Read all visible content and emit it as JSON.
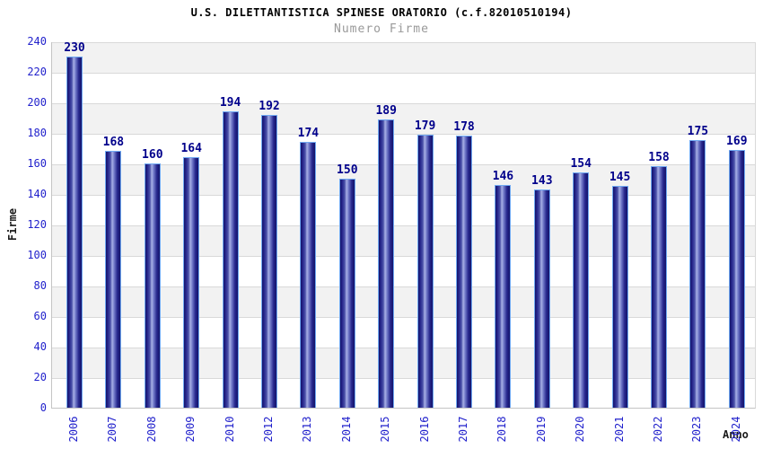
{
  "header": {
    "title": "U.S. DILETTANTISTICA SPINESE ORATORIO (c.f.82010510194)",
    "subtitle": "Numero Firme"
  },
  "chart_data": {
    "type": "bar",
    "title": "U.S. DILETTANTISTICA SPINESE ORATORIO (c.f.82010510194)",
    "subtitle": "Numero Firme",
    "xlabel": "Anno",
    "ylabel": "Firme",
    "categories": [
      "2006",
      "2007",
      "2008",
      "2009",
      "2010",
      "2012",
      "2013",
      "2014",
      "2015",
      "2016",
      "2017",
      "2018",
      "2019",
      "2020",
      "2021",
      "2022",
      "2023",
      "2024"
    ],
    "values": [
      230,
      168,
      160,
      164,
      194,
      192,
      174,
      150,
      189,
      179,
      178,
      146,
      143,
      154,
      145,
      158,
      175,
      169
    ],
    "ylim": [
      0,
      240
    ],
    "ytick_step": 20,
    "yticks": [
      0,
      20,
      40,
      60,
      80,
      100,
      120,
      140,
      160,
      180,
      200,
      220,
      240
    ],
    "grid": true,
    "legend": "none",
    "colors": {
      "bar_dark": "#14146a",
      "bar_light": "#a9b1e6",
      "bar_border": "#70a9f2",
      "tick_label": "#2222cc",
      "value_label": "#00008b",
      "band_gray": "#f2f2f2",
      "gridline": "#d9d9d9",
      "subtitle_gray": "#999999"
    }
  }
}
